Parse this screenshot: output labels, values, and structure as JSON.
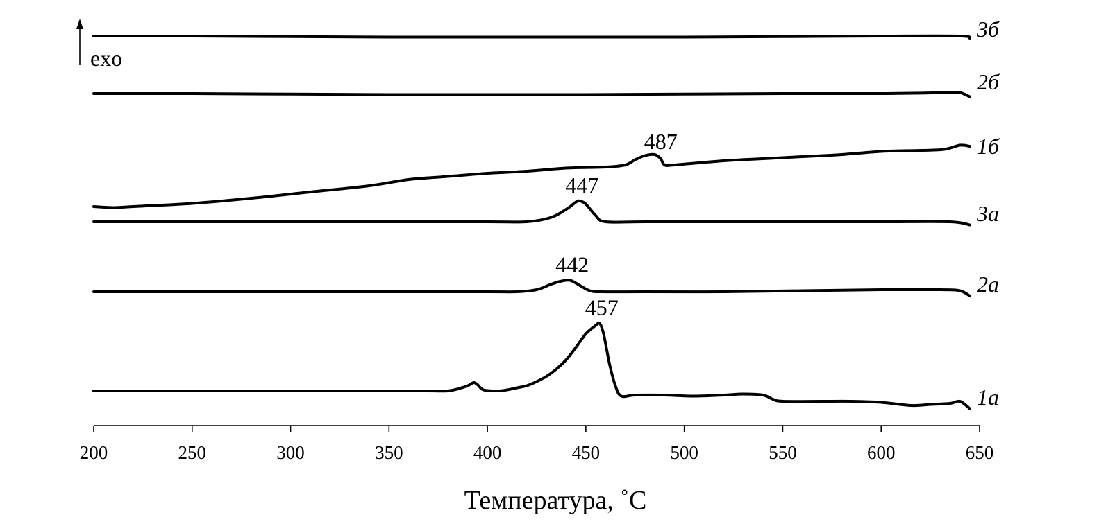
{
  "chart_data": {
    "type": "line",
    "xlabel": "Температура, ˚С",
    "ylabel": "",
    "xlim": [
      200,
      650
    ],
    "x_ticks": [
      200,
      250,
      300,
      350,
      400,
      450,
      500,
      550,
      600,
      650
    ],
    "grid": false,
    "y_axis_note": "exo",
    "y_units": "relative heat flow (arbitrary units, stacked offsets)",
    "series": [
      {
        "name": "1а",
        "peak_label": "457",
        "points": [
          [
            200,
            0.0
          ],
          [
            220,
            0.0
          ],
          [
            240,
            0.0
          ],
          [
            260,
            0.0
          ],
          [
            280,
            0.0
          ],
          [
            300,
            0.0
          ],
          [
            320,
            0.0
          ],
          [
            340,
            0.0
          ],
          [
            350,
            0.0
          ],
          [
            360,
            0.0
          ],
          [
            370,
            0.0
          ],
          [
            380,
            0.0
          ],
          [
            385,
            0.2
          ],
          [
            390,
            0.5
          ],
          [
            393,
            0.8
          ],
          [
            395,
            0.6
          ],
          [
            398,
            0.1
          ],
          [
            405,
            0.0
          ],
          [
            410,
            0.1
          ],
          [
            415,
            0.3
          ],
          [
            420,
            0.5
          ],
          [
            425,
            0.9
          ],
          [
            430,
            1.4
          ],
          [
            435,
            2.1
          ],
          [
            440,
            3.0
          ],
          [
            445,
            4.2
          ],
          [
            450,
            5.5
          ],
          [
            455,
            6.3
          ],
          [
            457,
            6.5
          ],
          [
            459,
            5.5
          ],
          [
            462,
            2.6
          ],
          [
            465,
            0.5
          ],
          [
            468,
            -0.5
          ],
          [
            475,
            -0.4
          ],
          [
            490,
            -0.4
          ],
          [
            505,
            -0.5
          ],
          [
            520,
            -0.4
          ],
          [
            530,
            -0.3
          ],
          [
            540,
            -0.4
          ],
          [
            545,
            -0.8
          ],
          [
            550,
            -1.0
          ],
          [
            570,
            -1.0
          ],
          [
            585,
            -1.0
          ],
          [
            600,
            -1.1
          ],
          [
            615,
            -1.4
          ],
          [
            625,
            -1.3
          ],
          [
            635,
            -1.2
          ],
          [
            640,
            -1.0
          ],
          [
            645,
            -1.7
          ]
        ]
      },
      {
        "name": "2а",
        "peak_label": "442",
        "points": [
          [
            200,
            0.0
          ],
          [
            250,
            0.0
          ],
          [
            300,
            0.0
          ],
          [
            350,
            0.0
          ],
          [
            400,
            0.0
          ],
          [
            415,
            0.0
          ],
          [
            425,
            0.2
          ],
          [
            432,
            0.7
          ],
          [
            437,
            1.0
          ],
          [
            442,
            1.1
          ],
          [
            447,
            0.6
          ],
          [
            452,
            0.1
          ],
          [
            458,
            0.0
          ],
          [
            480,
            0.0
          ],
          [
            520,
            0.0
          ],
          [
            560,
            0.1
          ],
          [
            600,
            0.2
          ],
          [
            630,
            0.2
          ],
          [
            640,
            0.1
          ],
          [
            645,
            -0.4
          ]
        ]
      },
      {
        "name": "3а",
        "peak_label": "447",
        "points": [
          [
            200,
            0.0
          ],
          [
            250,
            0.0
          ],
          [
            300,
            0.0
          ],
          [
            350,
            0.0
          ],
          [
            400,
            0.0
          ],
          [
            420,
            0.0
          ],
          [
            432,
            0.4
          ],
          [
            440,
            1.2
          ],
          [
            445,
            1.9
          ],
          [
            447,
            2.0
          ],
          [
            450,
            1.7
          ],
          [
            455,
            0.6
          ],
          [
            460,
            0.0
          ],
          [
            480,
            0.0
          ],
          [
            520,
            0.0
          ],
          [
            560,
            0.0
          ],
          [
            600,
            0.0
          ],
          [
            635,
            0.0
          ],
          [
            645,
            -0.3
          ]
        ]
      },
      {
        "name": "1б",
        "peak_label": "487",
        "points": [
          [
            200,
            0.0
          ],
          [
            210,
            -0.1
          ],
          [
            220,
            0.0
          ],
          [
            250,
            0.3
          ],
          [
            280,
            0.8
          ],
          [
            310,
            1.4
          ],
          [
            340,
            2.0
          ],
          [
            360,
            2.6
          ],
          [
            380,
            2.9
          ],
          [
            400,
            3.2
          ],
          [
            420,
            3.4
          ],
          [
            440,
            3.7
          ],
          [
            460,
            3.8
          ],
          [
            470,
            4.0
          ],
          [
            475,
            4.5
          ],
          [
            480,
            4.9
          ],
          [
            485,
            5.0
          ],
          [
            488,
            4.6
          ],
          [
            490,
            4.0
          ],
          [
            495,
            4.0
          ],
          [
            520,
            4.4
          ],
          [
            540,
            4.6
          ],
          [
            560,
            4.8
          ],
          [
            580,
            5.0
          ],
          [
            600,
            5.3
          ],
          [
            620,
            5.4
          ],
          [
            632,
            5.5
          ],
          [
            640,
            5.9
          ],
          [
            645,
            5.8
          ]
        ]
      },
      {
        "name": "2б",
        "peak_label": "",
        "points": [
          [
            200,
            0.0
          ],
          [
            250,
            0.0
          ],
          [
            300,
            -0.05
          ],
          [
            350,
            -0.1
          ],
          [
            400,
            -0.1
          ],
          [
            450,
            -0.1
          ],
          [
            500,
            -0.05
          ],
          [
            550,
            0.0
          ],
          [
            600,
            0.0
          ],
          [
            635,
            0.1
          ],
          [
            640,
            0.1
          ],
          [
            645,
            -0.3
          ]
        ]
      },
      {
        "name": "3б",
        "peak_label": "",
        "points": [
          [
            200,
            0.0
          ],
          [
            250,
            0.0
          ],
          [
            300,
            -0.05
          ],
          [
            350,
            -0.1
          ],
          [
            400,
            -0.1
          ],
          [
            450,
            -0.1
          ],
          [
            500,
            -0.1
          ],
          [
            550,
            -0.05
          ],
          [
            600,
            0.0
          ],
          [
            640,
            0.0
          ],
          [
            645,
            -0.2
          ]
        ]
      }
    ]
  }
}
